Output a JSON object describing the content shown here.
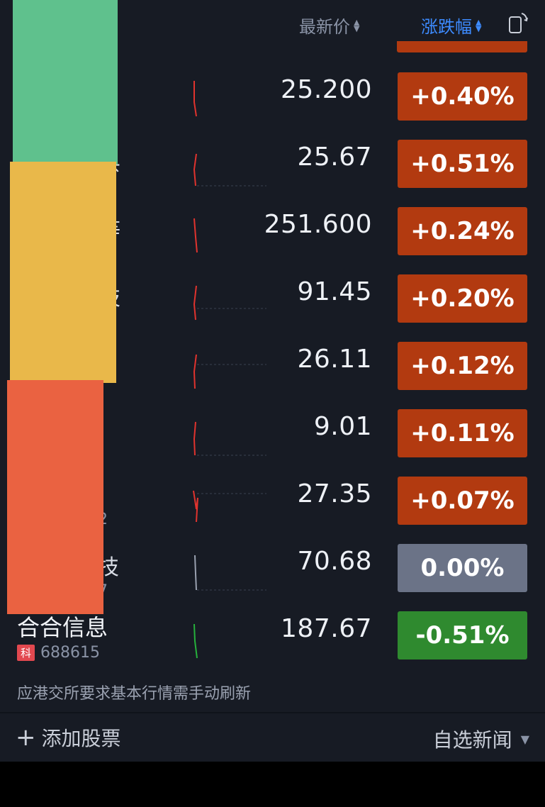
{
  "header": {
    "price_label": "最新价",
    "change_label": "涨跌幅"
  },
  "colors": {
    "up": "#b23a10",
    "flat": "#6b7387",
    "down": "#2f8a2f",
    "accent": "#3d8bff"
  },
  "rows": [
    {
      "price": "25.200",
      "change": "+0.40%",
      "direction": "up"
    },
    {
      "price": "25.67",
      "change": "+0.51%",
      "direction": "up",
      "partial_name": "县"
    },
    {
      "price": "251.600",
      "change": "+0.24%",
      "direction": "up",
      "partial_name": "等"
    },
    {
      "price": "91.45",
      "change": "+0.20%",
      "direction": "up",
      "partial_name": "技"
    },
    {
      "price": "26.11",
      "change": "+0.12%",
      "direction": "up"
    },
    {
      "price": "9.01",
      "change": "+0.11%",
      "direction": "up"
    },
    {
      "price": "27.35",
      "change": "+0.07%",
      "direction": "up",
      "partial_code": "2"
    },
    {
      "price": "70.68",
      "change": "0.00%",
      "direction": "flat",
      "partial_name": "技",
      "partial_code": "7"
    },
    {
      "name": "合合信息",
      "market": "科",
      "code": "688615",
      "price": "187.67",
      "change": "-0.51%",
      "direction": "down"
    }
  ],
  "notice": "应港交所要求基本行情需手动刷新",
  "footer": {
    "add_label": "添加股票",
    "news_label": "自选新闻"
  }
}
